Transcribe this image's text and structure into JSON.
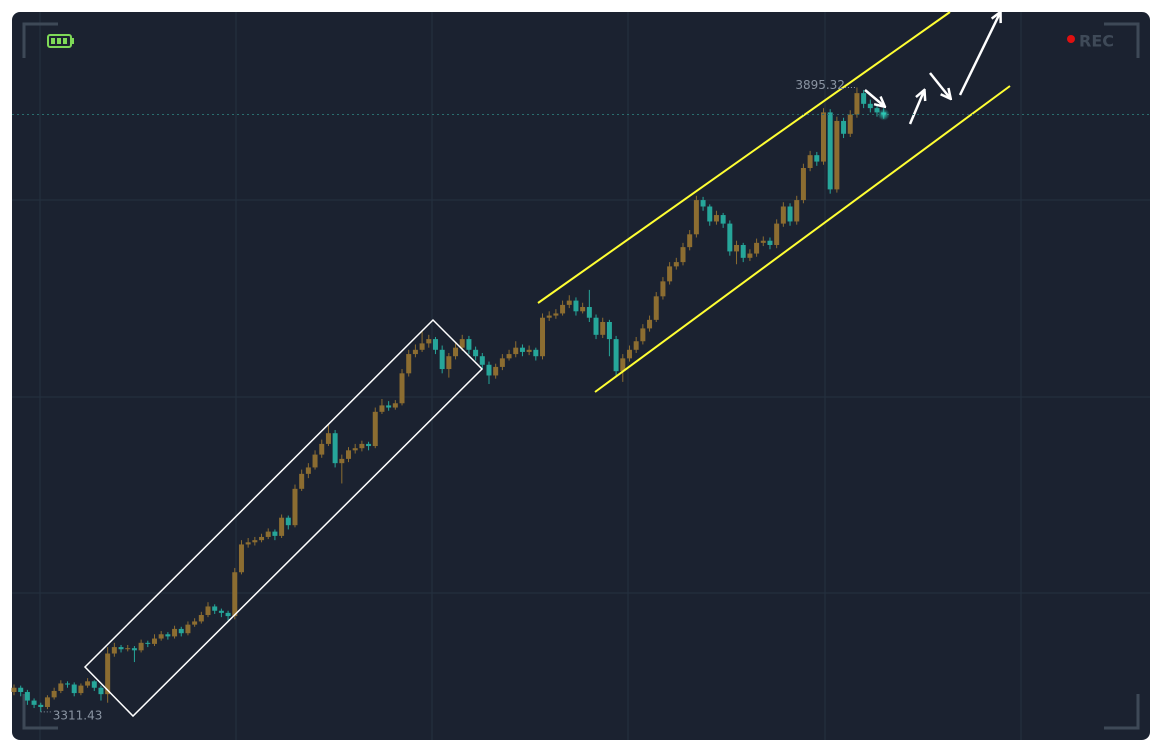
{
  "chart_data": {
    "type": "candlestick",
    "ylim": [
      3287,
      3964
    ],
    "up_color": "#8c6d31",
    "down_color": "#26a69a",
    "recording": "REC",
    "candles": [
      [
        3330,
        3337,
        3327,
        3334
      ],
      [
        3334,
        3336,
        3326,
        3330
      ],
      [
        3330,
        3332,
        3318,
        3322
      ],
      [
        3322,
        3324,
        3315,
        3318
      ],
      [
        3318,
        3320,
        3311.43,
        3316
      ],
      [
        3316,
        3327,
        3314,
        3325
      ],
      [
        3325,
        3334,
        3323,
        3331
      ],
      [
        3331,
        3341,
        3329,
        3338
      ],
      [
        3338,
        3340,
        3334,
        3337
      ],
      [
        3337,
        3339,
        3326,
        3329
      ],
      [
        3329,
        3338,
        3327,
        3336
      ],
      [
        3336,
        3343,
        3334,
        3340
      ],
      [
        3340,
        3341,
        3331,
        3334
      ],
      [
        3334,
        3336,
        3322,
        3328
      ],
      [
        3328,
        3372,
        3320,
        3366
      ],
      [
        3366,
        3376,
        3363,
        3372
      ],
      [
        3372,
        3374,
        3367,
        3370
      ],
      [
        3370,
        3374,
        3368,
        3371
      ],
      [
        3371,
        3373,
        3358,
        3369
      ],
      [
        3369,
        3379,
        3367,
        3376
      ],
      [
        3376,
        3378,
        3372,
        3375
      ],
      [
        3375,
        3384,
        3373,
        3380
      ],
      [
        3380,
        3387,
        3378,
        3384
      ],
      [
        3384,
        3386,
        3379,
        3382
      ],
      [
        3382,
        3392,
        3380,
        3389
      ],
      [
        3389,
        3391,
        3382,
        3385
      ],
      [
        3385,
        3396,
        3383,
        3393
      ],
      [
        3393,
        3399,
        3391,
        3396
      ],
      [
        3396,
        3405,
        3394,
        3402
      ],
      [
        3402,
        3414,
        3400,
        3410
      ],
      [
        3410,
        3412,
        3403,
        3406
      ],
      [
        3406,
        3408,
        3400,
        3404
      ],
      [
        3404,
        3406,
        3397,
        3401
      ],
      [
        3401,
        3446,
        3398,
        3442
      ],
      [
        3442,
        3472,
        3440,
        3468
      ],
      [
        3468,
        3474,
        3465,
        3470
      ],
      [
        3470,
        3475,
        3467,
        3472
      ],
      [
        3472,
        3478,
        3470,
        3475
      ],
      [
        3475,
        3483,
        3473,
        3480
      ],
      [
        3480,
        3482,
        3472,
        3476
      ],
      [
        3476,
        3496,
        3474,
        3493
      ],
      [
        3493,
        3495,
        3482,
        3486
      ],
      [
        3486,
        3524,
        3484,
        3520
      ],
      [
        3520,
        3538,
        3518,
        3534
      ],
      [
        3534,
        3544,
        3530,
        3540
      ],
      [
        3540,
        3556,
        3538,
        3552
      ],
      [
        3552,
        3566,
        3549,
        3562
      ],
      [
        3562,
        3580,
        3560,
        3572
      ],
      [
        3572,
        3575,
        3540,
        3544
      ],
      [
        3544,
        3552,
        3525,
        3548
      ],
      [
        3548,
        3559,
        3545,
        3556
      ],
      [
        3556,
        3562,
        3553,
        3558
      ],
      [
        3558,
        3565,
        3555,
        3562
      ],
      [
        3562,
        3564,
        3556,
        3560
      ],
      [
        3560,
        3596,
        3558,
        3592
      ],
      [
        3592,
        3604,
        3590,
        3598
      ],
      [
        3598,
        3602,
        3593,
        3596
      ],
      [
        3596,
        3603,
        3594,
        3600
      ],
      [
        3600,
        3632,
        3598,
        3628
      ],
      [
        3628,
        3650,
        3625,
        3646
      ],
      [
        3646,
        3655,
        3643,
        3650
      ],
      [
        3650,
        3668,
        3648,
        3656
      ],
      [
        3656,
        3664,
        3652,
        3660
      ],
      [
        3660,
        3662,
        3646,
        3650
      ],
      [
        3650,
        3654,
        3628,
        3632
      ],
      [
        3632,
        3647,
        3624,
        3644
      ],
      [
        3644,
        3656,
        3641,
        3652
      ],
      [
        3652,
        3664,
        3649,
        3660
      ],
      [
        3660,
        3663,
        3646,
        3650
      ],
      [
        3650,
        3653,
        3640,
        3644
      ],
      [
        3644,
        3647,
        3632,
        3636
      ],
      [
        3636,
        3639,
        3618,
        3626
      ],
      [
        3626,
        3637,
        3623,
        3634
      ],
      [
        3634,
        3646,
        3631,
        3642
      ],
      [
        3642,
        3650,
        3640,
        3646
      ],
      [
        3646,
        3658,
        3643,
        3652
      ],
      [
        3652,
        3655,
        3644,
        3648
      ],
      [
        3648,
        3654,
        3645,
        3650
      ],
      [
        3650,
        3652,
        3640,
        3644
      ],
      [
        3644,
        3684,
        3641,
        3680
      ],
      [
        3680,
        3686,
        3677,
        3682
      ],
      [
        3682,
        3688,
        3679,
        3684
      ],
      [
        3684,
        3696,
        3682,
        3692
      ],
      [
        3692,
        3701,
        3689,
        3696
      ],
      [
        3696,
        3699,
        3682,
        3686
      ],
      [
        3686,
        3694,
        3684,
        3690
      ],
      [
        3690,
        3706,
        3676,
        3680
      ],
      [
        3680,
        3683,
        3660,
        3664
      ],
      [
        3664,
        3680,
        3661,
        3676
      ],
      [
        3676,
        3678,
        3644,
        3660
      ],
      [
        3660,
        3663,
        3626,
        3630
      ],
      [
        3630,
        3646,
        3620,
        3642
      ],
      [
        3642,
        3654,
        3639,
        3650
      ],
      [
        3650,
        3662,
        3647,
        3658
      ],
      [
        3658,
        3674,
        3655,
        3670
      ],
      [
        3670,
        3682,
        3667,
        3678
      ],
      [
        3678,
        3704,
        3676,
        3700
      ],
      [
        3700,
        3718,
        3697,
        3714
      ],
      [
        3714,
        3732,
        3711,
        3728
      ],
      [
        3728,
        3736,
        3725,
        3732
      ],
      [
        3732,
        3750,
        3729,
        3746
      ],
      [
        3746,
        3762,
        3743,
        3758
      ],
      [
        3758,
        3794,
        3755,
        3790
      ],
      [
        3790,
        3793,
        3780,
        3784
      ],
      [
        3784,
        3786,
        3766,
        3770
      ],
      [
        3770,
        3780,
        3767,
        3776
      ],
      [
        3776,
        3778,
        3764,
        3768
      ],
      [
        3768,
        3771,
        3738,
        3742
      ],
      [
        3742,
        3752,
        3730,
        3748
      ],
      [
        3748,
        3750,
        3732,
        3736
      ],
      [
        3736,
        3744,
        3733,
        3740
      ],
      [
        3740,
        3754,
        3737,
        3750
      ],
      [
        3750,
        3756,
        3747,
        3752
      ],
      [
        3752,
        3755,
        3744,
        3748
      ],
      [
        3748,
        3772,
        3745,
        3768
      ],
      [
        3768,
        3788,
        3765,
        3784
      ],
      [
        3784,
        3787,
        3766,
        3770
      ],
      [
        3770,
        3794,
        3767,
        3790
      ],
      [
        3790,
        3824,
        3787,
        3820
      ],
      [
        3820,
        3836,
        3817,
        3832
      ],
      [
        3832,
        3835,
        3822,
        3826
      ],
      [
        3826,
        3876,
        3823,
        3872
      ],
      [
        3872,
        3875,
        3796,
        3800
      ],
      [
        3800,
        3868,
        3797,
        3864
      ],
      [
        3864,
        3867,
        3848,
        3852
      ],
      [
        3852,
        3874,
        3849,
        3870
      ],
      [
        3870,
        3895.32,
        3867,
        3890
      ],
      [
        3890,
        3893,
        3876,
        3880
      ],
      [
        3880,
        3884,
        3872,
        3876
      ],
      [
        3876,
        3880,
        3868,
        3872
      ],
      [
        3872,
        3876,
        3866,
        3870
      ]
    ]
  }
}
